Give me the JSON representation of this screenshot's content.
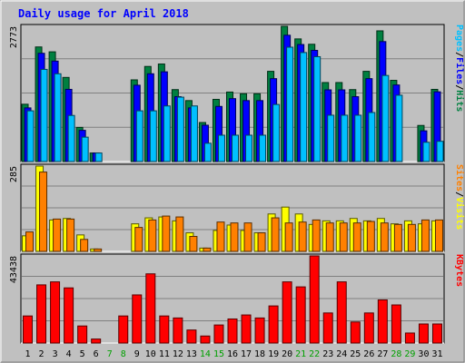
{
  "chart_data": {
    "type": "bar",
    "title": "Daily usage for April 2018",
    "days": [
      "1",
      "2",
      "3",
      "4",
      "5",
      "6",
      "7",
      "8",
      "9",
      "10",
      "11",
      "12",
      "13",
      "14",
      "15",
      "16",
      "17",
      "18",
      "19",
      "20",
      "21",
      "22",
      "23",
      "24",
      "25",
      "26",
      "27",
      "28",
      "29",
      "30",
      "31"
    ],
    "weekend_days": [
      "7",
      "8",
      "14",
      "15",
      "21",
      "22",
      "28",
      "29"
    ],
    "panels": [
      {
        "id": "pages_files_hits",
        "max_label": "2773",
        "ylim": [
          0,
          2773
        ],
        "legend": [
          "Pages",
          "/",
          "Files",
          "/",
          "Hits"
        ],
        "legend_colors": [
          "#00C0FF",
          "#000000",
          "#0000FF",
          "#000000",
          "#008040"
        ],
        "series": [
          {
            "name": "Hits",
            "color": "#008040",
            "values": [
              1175,
              2350,
              2250,
              1725,
              700,
              175,
              0,
              0,
              1675,
              1950,
              2000,
              1475,
              1250,
              800,
              1275,
              1425,
              1390,
              1390,
              1850,
              2773,
              2515,
              2405,
              1620,
              1620,
              1475,
              1850,
              2680,
              1665,
              0,
              740,
              1480
            ]
          },
          {
            "name": "Files",
            "color": "#0000FF",
            "values": [
              1100,
              2220,
              2060,
              1480,
              640,
              175,
              0,
              0,
              1565,
              1800,
              1840,
              1330,
              1100,
              745,
              1130,
              1290,
              1250,
              1250,
              1700,
              2590,
              2400,
              2280,
              1470,
              1470,
              1330,
              1700,
              2460,
              1570,
              0,
              630,
              1430
            ]
          },
          {
            "name": "Pages",
            "color": "#00C0FF",
            "values": [
              1040,
              1890,
              1800,
              945,
              500,
              175,
              0,
              0,
              1040,
              1040,
              1140,
              1320,
              1140,
              375,
              540,
              540,
              540,
              540,
              1170,
              2345,
              2235,
              2150,
              950,
              950,
              950,
              1005,
              1765,
              1360,
              0,
              395,
              415
            ]
          }
        ]
      },
      {
        "id": "sites_visits",
        "max_label": "285",
        "ylim": [
          0,
          285
        ],
        "legend": [
          "Sites",
          "/",
          "Visits"
        ],
        "legend_colors": [
          "#FF8000",
          "#000000",
          "#FFFF00"
        ],
        "series": [
          {
            "name": "Visits",
            "color": "#FFFF00",
            "values": [
              52,
              285,
              105,
              110,
              55,
              8,
              0,
              0,
              92,
              112,
              115,
              102,
              62,
              11,
              70,
              88,
              70,
              62,
              125,
              148,
              125,
              90,
              102,
              102,
              110,
              102,
              110,
              92,
              102,
              92,
              102
            ]
          },
          {
            "name": "Sites",
            "color": "#FF8000",
            "values": [
              65,
              265,
              108,
              108,
              40,
              8,
              0,
              0,
              80,
              105,
              118,
              115,
              50,
              11,
              98,
              95,
              95,
              62,
              112,
              95,
              98,
              105,
              95,
              95,
              95,
              100,
              95,
              90,
              90,
              105,
              105
            ]
          }
        ]
      },
      {
        "id": "kbytes",
        "max_label": "43438",
        "ylim": [
          0,
          43438
        ],
        "legend": [
          "KBytes"
        ],
        "legend_colors": [
          "#FF0000"
        ],
        "series": [
          {
            "name": "KBytes",
            "color": "#FF0000",
            "values": [
              13500,
              29000,
              30500,
              27500,
              8500,
              2000,
              0,
              13500,
              24000,
              34500,
              13500,
              12500,
              6500,
              3500,
              9000,
              12000,
              14000,
              12500,
              18500,
              30500,
              28000,
              43438,
              15000,
              30500,
              10500,
              15000,
              21500,
              19000,
              5000,
              9500,
              9500
            ]
          }
        ]
      }
    ]
  }
}
